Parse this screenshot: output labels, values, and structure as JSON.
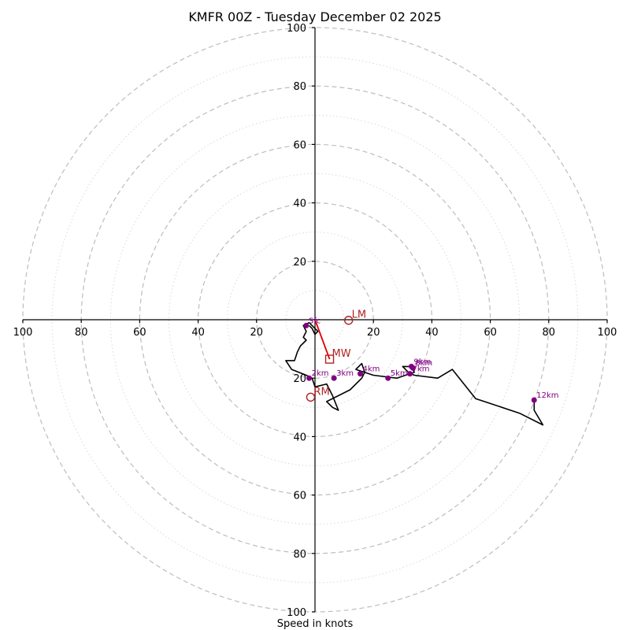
{
  "chart_data": {
    "type": "hodograph",
    "title": "KMFR 00Z - Tuesday December 02 2025",
    "xlabel": "Speed in knots",
    "units": "knots",
    "rmax": 100,
    "rings_major": [
      20,
      40,
      60,
      80,
      100
    ],
    "rings_minor": [
      10,
      30,
      50,
      70,
      90
    ],
    "x_ticks": [
      {
        "value": -100,
        "label": "100"
      },
      {
        "value": -80,
        "label": "80"
      },
      {
        "value": -60,
        "label": "60"
      },
      {
        "value": -40,
        "label": "40"
      },
      {
        "value": -20,
        "label": "20"
      },
      {
        "value": 20,
        "label": "20"
      },
      {
        "value": 40,
        "label": "40"
      },
      {
        "value": 60,
        "label": "60"
      },
      {
        "value": 80,
        "label": "80"
      },
      {
        "value": 100,
        "label": "100"
      }
    ],
    "y_ticks": [
      {
        "value": 100,
        "label": "100"
      },
      {
        "value": 80,
        "label": "80"
      },
      {
        "value": 60,
        "label": "60"
      },
      {
        "value": 40,
        "label": "40"
      },
      {
        "value": 20,
        "label": "20"
      },
      {
        "value": -20,
        "label": "20"
      },
      {
        "value": -40,
        "label": "40"
      },
      {
        "value": -60,
        "label": "60"
      },
      {
        "value": -80,
        "label": "80"
      },
      {
        "value": -100,
        "label": "100"
      }
    ],
    "hodograph": {
      "u": [
        -2,
        -1,
        0,
        1,
        -2,
        -4,
        -3,
        -4,
        -3,
        -5,
        -6,
        -7,
        -10,
        -8,
        -3,
        -1,
        0,
        4,
        6,
        8,
        6,
        4,
        12,
        16,
        17,
        16,
        14,
        20,
        28,
        34,
        33,
        30,
        32,
        34,
        42,
        47,
        55,
        70,
        78,
        75,
        75
      ],
      "v": [
        -2,
        -3,
        -5,
        -4,
        -1,
        -2,
        -4,
        -6,
        -7,
        -9,
        -11,
        -14,
        -14,
        -17,
        -19,
        -20,
        -23,
        -22,
        -26,
        -31,
        -30,
        -28,
        -24,
        -20,
        -18,
        -15,
        -17,
        -19,
        -20,
        -18,
        -16,
        -16,
        -18,
        -19,
        -20,
        -17,
        -27,
        -32,
        -36,
        -31,
        -27
      ]
    },
    "height_markers": [
      {
        "label": "Sfc",
        "u": -3,
        "v": -2
      },
      {
        "label": "2km",
        "u": -2,
        "v": -20
      },
      {
        "label": "3km",
        "u": 6.5,
        "v": -20
      },
      {
        "label": "4km",
        "u": 15.5,
        "v": -18.5
      },
      {
        "label": "5km",
        "u": 25,
        "v": -20
      },
      {
        "label": "7km",
        "u": 32.5,
        "v": -18.5
      },
      {
        "label": "8km",
        "u": 33.5,
        "v": -16.5
      },
      {
        "label": "9km",
        "u": 33,
        "v": -16
      },
      {
        "label": "12km",
        "u": 75,
        "v": -27.5
      }
    ],
    "storm_motion": {
      "mean_wind": {
        "label": "MW",
        "u": 5,
        "v": -13.5
      },
      "left_mover": {
        "label": "LM",
        "u": 11.5,
        "v": -0.2
      },
      "right_mover": {
        "label": "RM",
        "u": -1.5,
        "v": -26.5
      }
    }
  }
}
